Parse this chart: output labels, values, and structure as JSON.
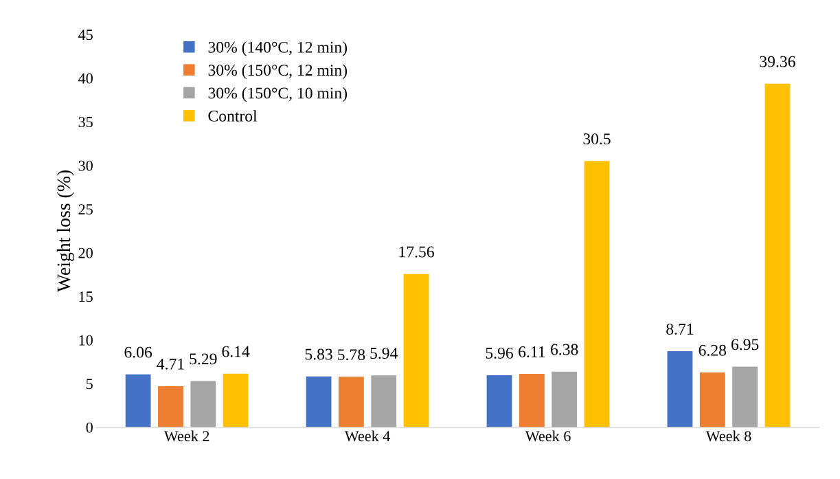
{
  "chart_data": {
    "type": "bar",
    "ylabel": "Weight loss (%)",
    "categories": [
      "Week 2",
      "Week 4",
      "Week 6",
      "Week 8"
    ],
    "series": [
      {
        "name": "30% (140°C, 12 min)",
        "color": "#4472c4",
        "values": [
          6.06,
          5.83,
          5.96,
          8.71
        ]
      },
      {
        "name": "30% (150°C, 12 min)",
        "color": "#ed7d31",
        "values": [
          4.71,
          5.78,
          6.11,
          6.28
        ]
      },
      {
        "name": "30% (150°C, 10 min)",
        "color": "#a5a5a5",
        "values": [
          5.29,
          5.94,
          6.38,
          6.95
        ]
      },
      {
        "name": "Control",
        "color": "#ffc000",
        "values": [
          6.14,
          17.56,
          30.5,
          39.36
        ]
      }
    ],
    "ylim": [
      0,
      45
    ],
    "yticks": [
      0,
      5,
      10,
      15,
      20,
      25,
      30,
      35,
      40,
      45
    ],
    "data_labels": true,
    "legend": "top left",
    "grid": false
  }
}
